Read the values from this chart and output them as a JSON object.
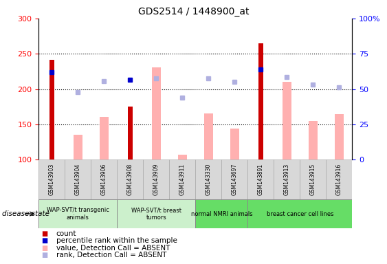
{
  "title": "GDS2514 / 1448900_at",
  "samples": [
    "GSM143903",
    "GSM143904",
    "GSM143906",
    "GSM143908",
    "GSM143909",
    "GSM143911",
    "GSM143330",
    "GSM143697",
    "GSM143891",
    "GSM143913",
    "GSM143915",
    "GSM143916"
  ],
  "count_values": [
    241,
    null,
    null,
    175,
    null,
    null,
    null,
    null,
    265,
    null,
    null,
    null
  ],
  "count_color": "#cc0000",
  "absent_value_bars": [
    null,
    135,
    161,
    null,
    231,
    107,
    166,
    144,
    null,
    210,
    155,
    165
  ],
  "absent_value_color": "#ffb0b0",
  "absent_rank_values": [
    null,
    196,
    211,
    null,
    215,
    188,
    215,
    210,
    null,
    217,
    206,
    203
  ],
  "absent_rank_color": "#b0b0e0",
  "blue_square_present": [
    224,
    null,
    null,
    213,
    null,
    null,
    null,
    null,
    228,
    null,
    null,
    null
  ],
  "blue_square_color": "#0000cc",
  "ylim": [
    100,
    300
  ],
  "yticks_left": [
    100,
    150,
    200,
    250,
    300
  ],
  "yticks_right_labels": [
    "0",
    "25",
    "50",
    "75",
    "100%"
  ],
  "grid_lines": [
    150,
    200,
    250
  ],
  "groups": [
    {
      "label": "WAP-SVT/t transgenic\nanimals",
      "indices": [
        0,
        1,
        2
      ],
      "color": "#ccf0cc"
    },
    {
      "label": "WAP-SVT/t breast\ntumors",
      "indices": [
        3,
        4,
        5
      ],
      "color": "#ccf0cc"
    },
    {
      "label": "normal NMRI animals",
      "indices": [
        6,
        7
      ],
      "color": "#66dd66"
    },
    {
      "label": "breast cancer cell lines",
      "indices": [
        8,
        9,
        10,
        11
      ],
      "color": "#66dd66"
    }
  ],
  "sample_box_color": "#d8d8d8",
  "sample_box_edge": "#aaaaaa",
  "disease_state_label": "disease state",
  "legend_items": [
    {
      "marker": "s",
      "color": "#cc0000",
      "label": "count"
    },
    {
      "marker": "s",
      "color": "#0000cc",
      "label": "percentile rank within the sample"
    },
    {
      "marker": "s",
      "color": "#ffb0b0",
      "label": "value, Detection Call = ABSENT"
    },
    {
      "marker": "s",
      "color": "#b0b0e0",
      "label": "rank, Detection Call = ABSENT"
    }
  ]
}
